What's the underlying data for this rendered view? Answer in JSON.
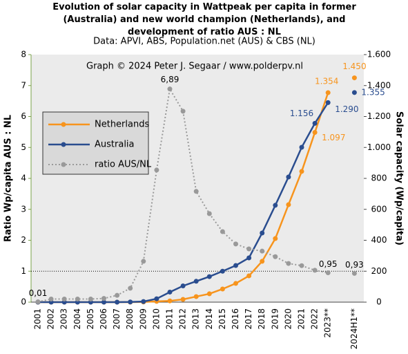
{
  "chart_data": {
    "type": "line",
    "title": "Evolution of solar capacity in Wattpeak per capita in former (Australia) and new world champion (Netherlands), and development of ratio AUS : NL",
    "subtitle": "Data: APVI, ABS, Population.net (AUS) & CBS (NL)",
    "annotation": "Graph © 2024 Peter J. Segaar / www.polderpv.nl",
    "ylabel": "Ratio Wp/capita AUS : NL",
    "y2label": "Solar capacity (Wp/capita)",
    "categories": [
      "2001",
      "2002",
      "2003",
      "2004",
      "2005",
      "2006",
      "2007",
      "2008",
      "2009",
      "2010",
      "2011",
      "2012",
      "2013",
      "2014",
      "2015",
      "2016",
      "2017",
      "2018",
      "2019",
      "2020",
      "2021",
      "2022",
      "2023**",
      null,
      "2024H1**"
    ],
    "ylim": [
      0,
      8
    ],
    "yticks": [
      0,
      1,
      2,
      3,
      4,
      5,
      6,
      7,
      8
    ],
    "y2lim": [
      0,
      1600
    ],
    "y2ticks": [
      0,
      200,
      400,
      600,
      800,
      {
        "value": 1000,
        "label": "1.000"
      },
      {
        "value": 1200,
        "label": "1.200"
      },
      {
        "value": 1400,
        "label": "1.400"
      },
      {
        "value": 1600,
        "label": "1.600"
      }
    ],
    "reference_line": 1,
    "legend": "left",
    "series": [
      {
        "name": "Netherlands",
        "color": "#f7941d",
        "axis": "y2",
        "style": "solid",
        "values": [
          0,
          0,
          0,
          0,
          0,
          0,
          0,
          0,
          1,
          5,
          8,
          18,
          36,
          54,
          85,
          121,
          170,
          264,
          411,
          630,
          845,
          1097,
          1354,
          null,
          1450
        ],
        "value_labels": [
          null,
          null,
          null,
          null,
          null,
          null,
          null,
          null,
          null,
          null,
          null,
          null,
          null,
          null,
          null,
          null,
          null,
          null,
          null,
          null,
          null,
          "1.097",
          "1.354",
          null,
          "1.450"
        ]
      },
      {
        "name": "Australia",
        "color": "#2a4d8f",
        "axis": "y2",
        "style": "solid",
        "values": [
          0,
          0,
          0,
          0,
          0,
          0,
          0,
          1,
          4,
          22,
          65,
          105,
          135,
          165,
          200,
          237,
          286,
          447,
          626,
          809,
          1001,
          1156,
          1290,
          null,
          1355
        ],
        "value_labels": [
          null,
          null,
          null,
          null,
          null,
          null,
          null,
          null,
          null,
          null,
          null,
          null,
          null,
          null,
          null,
          null,
          null,
          null,
          null,
          null,
          null,
          "1.156",
          "1.290",
          null,
          "1.355"
        ]
      },
      {
        "name": "ratio AUS/NL",
        "color": "#999999",
        "axis": "y",
        "style": "dotted",
        "values": [
          0.01,
          0.1,
          0.1,
          0.1,
          0.1,
          0.12,
          0.22,
          0.45,
          1.32,
          4.27,
          6.89,
          6.17,
          3.58,
          2.86,
          2.28,
          1.88,
          1.72,
          1.65,
          1.47,
          1.25,
          1.18,
          1.03,
          0.95,
          null,
          0.93
        ],
        "value_labels": [
          "0,01",
          null,
          null,
          null,
          null,
          null,
          null,
          null,
          null,
          null,
          "6,89",
          null,
          null,
          null,
          null,
          null,
          null,
          null,
          null,
          null,
          null,
          null,
          "0,95",
          null,
          "0,93"
        ]
      }
    ]
  }
}
